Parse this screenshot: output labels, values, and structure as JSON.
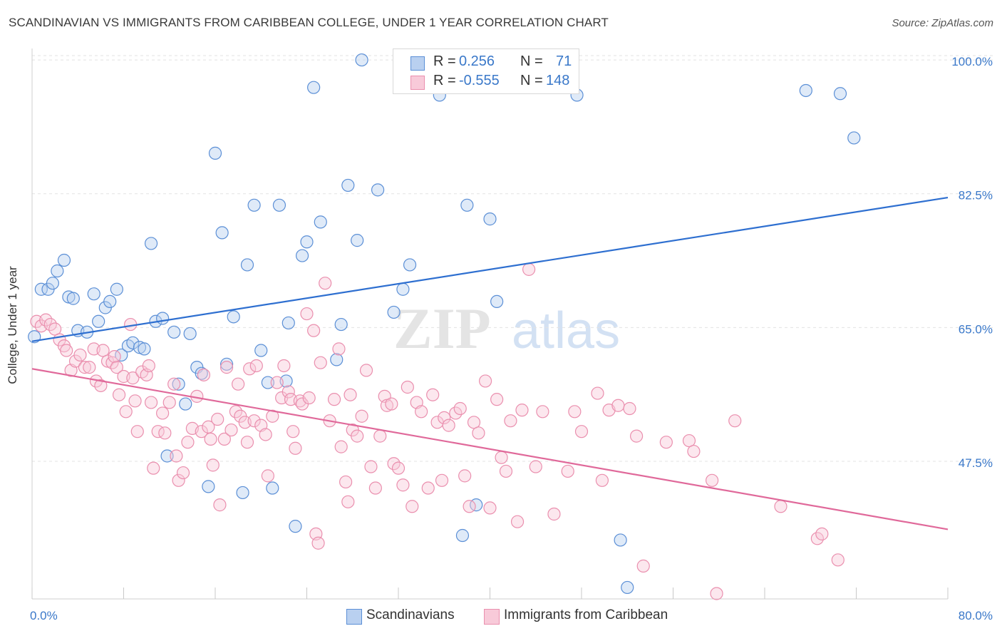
{
  "title": "SCANDINAVIAN VS IMMIGRANTS FROM CARIBBEAN COLLEGE, UNDER 1 YEAR CORRELATION CHART",
  "source": "Source: ZipAtlas.com",
  "watermark": "ZIPatlas",
  "legend": {
    "rows": [
      {
        "r_label": "R =",
        "r_value": "0.256",
        "n_label": "N =",
        "n_value": "71"
      },
      {
        "r_label": "R =",
        "r_value": "-0.555",
        "n_label": "N =",
        "n_value": "148"
      }
    ]
  },
  "chart_data": {
    "type": "scatter",
    "xlabel": "",
    "ylabel": "College, Under 1 year",
    "xlim": [
      0,
      80
    ],
    "ylim": [
      29.5,
      101.5
    ],
    "x_tick_labels": [
      "0.0%",
      "80.0%"
    ],
    "y_ticks": [
      47.5,
      65.0,
      82.5,
      100.0
    ],
    "y_tick_labels": [
      "47.5%",
      "65.0%",
      "82.5%",
      "100.0%"
    ],
    "grid": true,
    "legend_position": "bottom",
    "colors": {
      "blue": "#5b8fd6",
      "pink": "#ea8fae",
      "blue_line": "#2e6fd0",
      "pink_line": "#e0699a",
      "tick_text": "#3a78c9"
    },
    "series": [
      {
        "name": "Scandinavians",
        "color": "#5b8fd6",
        "trend": {
          "x": [
            0,
            80
          ],
          "y": [
            63.2,
            82.0
          ]
        },
        "points": [
          [
            0.2,
            63.8
          ],
          [
            0.8,
            70.0
          ],
          [
            1.4,
            70.0
          ],
          [
            1.8,
            70.8
          ],
          [
            2.2,
            72.4
          ],
          [
            2.8,
            73.8
          ],
          [
            3.2,
            69.0
          ],
          [
            3.6,
            68.8
          ],
          [
            4.0,
            64.6
          ],
          [
            4.8,
            64.4
          ],
          [
            5.4,
            69.4
          ],
          [
            5.8,
            65.8
          ],
          [
            6.4,
            67.6
          ],
          [
            6.8,
            68.4
          ],
          [
            7.4,
            70.0
          ],
          [
            7.8,
            61.4
          ],
          [
            8.4,
            62.6
          ],
          [
            8.8,
            63.0
          ],
          [
            9.4,
            62.4
          ],
          [
            9.8,
            62.2
          ],
          [
            10.4,
            76.0
          ],
          [
            10.8,
            65.8
          ],
          [
            11.4,
            66.2
          ],
          [
            11.8,
            48.2
          ],
          [
            12.4,
            64.4
          ],
          [
            12.8,
            57.6
          ],
          [
            13.4,
            55.0
          ],
          [
            13.8,
            64.2
          ],
          [
            14.4,
            59.8
          ],
          [
            14.8,
            59.0
          ],
          [
            15.4,
            44.2
          ],
          [
            16.0,
            87.8
          ],
          [
            16.6,
            77.4
          ],
          [
            17.0,
            60.2
          ],
          [
            17.6,
            66.4
          ],
          [
            18.4,
            43.4
          ],
          [
            18.8,
            73.2
          ],
          [
            19.4,
            81.0
          ],
          [
            20.0,
            62.0
          ],
          [
            20.6,
            57.8
          ],
          [
            21.0,
            44.0
          ],
          [
            21.6,
            81.0
          ],
          [
            22.2,
            58.0
          ],
          [
            22.4,
            65.6
          ],
          [
            23.0,
            39.0
          ],
          [
            23.6,
            74.4
          ],
          [
            24.0,
            76.2
          ],
          [
            24.6,
            96.4
          ],
          [
            25.2,
            78.8
          ],
          [
            26.6,
            60.8
          ],
          [
            27.0,
            65.4
          ],
          [
            27.6,
            83.6
          ],
          [
            28.4,
            76.4
          ],
          [
            28.8,
            100.0
          ],
          [
            30.2,
            83.0
          ],
          [
            31.6,
            67.0
          ],
          [
            32.4,
            70.0
          ],
          [
            33.0,
            73.2
          ],
          [
            35.6,
            95.4
          ],
          [
            37.6,
            37.8
          ],
          [
            38.0,
            81.0
          ],
          [
            38.8,
            41.8
          ],
          [
            40.0,
            79.2
          ],
          [
            40.6,
            68.4
          ],
          [
            42.8,
            100.0
          ],
          [
            47.6,
            95.4
          ],
          [
            51.4,
            37.2
          ],
          [
            52.0,
            31.0
          ],
          [
            67.6,
            96.0
          ],
          [
            70.6,
            95.6
          ],
          [
            71.8,
            89.8
          ]
        ]
      },
      {
        "name": "Immigrants from Caribbean",
        "color": "#ea8fae",
        "trend": {
          "x": [
            0,
            80
          ],
          "y": [
            59.6,
            38.6
          ]
        },
        "points": [
          [
            0.4,
            65.8
          ],
          [
            0.8,
            65.2
          ],
          [
            1.2,
            66.0
          ],
          [
            1.6,
            65.4
          ],
          [
            2.0,
            64.8
          ],
          [
            2.4,
            63.4
          ],
          [
            2.8,
            62.6
          ],
          [
            3.0,
            62.0
          ],
          [
            3.4,
            59.4
          ],
          [
            3.8,
            60.6
          ],
          [
            4.2,
            61.4
          ],
          [
            4.6,
            59.8
          ],
          [
            5.0,
            59.8
          ],
          [
            5.4,
            62.2
          ],
          [
            5.6,
            58.0
          ],
          [
            6.0,
            57.4
          ],
          [
            6.2,
            62.0
          ],
          [
            6.6,
            60.6
          ],
          [
            7.0,
            60.4
          ],
          [
            7.2,
            61.2
          ],
          [
            7.4,
            59.8
          ],
          [
            7.6,
            56.2
          ],
          [
            8.0,
            58.6
          ],
          [
            8.2,
            54.0
          ],
          [
            8.6,
            65.4
          ],
          [
            8.8,
            58.4
          ],
          [
            9.0,
            55.4
          ],
          [
            9.2,
            51.4
          ],
          [
            9.6,
            59.2
          ],
          [
            10.0,
            58.8
          ],
          [
            10.2,
            60.0
          ],
          [
            10.4,
            55.2
          ],
          [
            10.6,
            46.6
          ],
          [
            11.0,
            51.4
          ],
          [
            11.4,
            53.8
          ],
          [
            11.6,
            51.2
          ],
          [
            12.0,
            55.2
          ],
          [
            12.4,
            57.6
          ],
          [
            12.6,
            48.2
          ],
          [
            12.8,
            45.0
          ],
          [
            13.2,
            46.0
          ],
          [
            13.6,
            50.0
          ],
          [
            14.0,
            51.8
          ],
          [
            14.4,
            56.0
          ],
          [
            14.8,
            51.4
          ],
          [
            15.0,
            58.8
          ],
          [
            15.4,
            52.0
          ],
          [
            15.6,
            50.4
          ],
          [
            15.8,
            47.0
          ],
          [
            16.2,
            53.0
          ],
          [
            16.4,
            41.8
          ],
          [
            16.8,
            50.4
          ],
          [
            17.0,
            59.8
          ],
          [
            17.4,
            51.6
          ],
          [
            17.8,
            54.0
          ],
          [
            18.0,
            57.6
          ],
          [
            18.2,
            53.4
          ],
          [
            18.6,
            52.6
          ],
          [
            18.8,
            50.0
          ],
          [
            19.0,
            59.6
          ],
          [
            19.4,
            52.8
          ],
          [
            19.6,
            60.0
          ],
          [
            20.0,
            52.2
          ],
          [
            20.4,
            51.0
          ],
          [
            20.6,
            45.6
          ],
          [
            21.0,
            53.4
          ],
          [
            21.4,
            57.8
          ],
          [
            21.8,
            55.8
          ],
          [
            22.0,
            60.0
          ],
          [
            22.4,
            56.6
          ],
          [
            22.6,
            55.6
          ],
          [
            22.8,
            51.4
          ],
          [
            23.0,
            49.2
          ],
          [
            23.4,
            55.4
          ],
          [
            23.6,
            55.0
          ],
          [
            24.0,
            66.8
          ],
          [
            24.2,
            55.8
          ],
          [
            24.6,
            64.6
          ],
          [
            24.8,
            38.0
          ],
          [
            25.0,
            36.8
          ],
          [
            25.2,
            60.4
          ],
          [
            25.6,
            70.8
          ],
          [
            26.0,
            52.8
          ],
          [
            26.4,
            55.6
          ],
          [
            26.8,
            62.2
          ],
          [
            27.0,
            49.4
          ],
          [
            27.4,
            44.8
          ],
          [
            27.6,
            42.2
          ],
          [
            27.8,
            56.2
          ],
          [
            28.0,
            51.6
          ],
          [
            28.4,
            50.8
          ],
          [
            28.8,
            53.4
          ],
          [
            29.2,
            59.4
          ],
          [
            29.6,
            46.8
          ],
          [
            30.0,
            44.0
          ],
          [
            30.4,
            50.8
          ],
          [
            30.8,
            56.0
          ],
          [
            31.0,
            54.8
          ],
          [
            31.4,
            55.0
          ],
          [
            31.6,
            47.2
          ],
          [
            32.0,
            46.6
          ],
          [
            32.4,
            44.4
          ],
          [
            32.8,
            57.2
          ],
          [
            33.2,
            41.6
          ],
          [
            33.6,
            55.2
          ],
          [
            34.0,
            54.0
          ],
          [
            34.6,
            44.0
          ],
          [
            35.0,
            56.2
          ],
          [
            35.4,
            52.6
          ],
          [
            35.8,
            45.0
          ],
          [
            36.0,
            53.2
          ],
          [
            36.4,
            52.2
          ],
          [
            37.0,
            53.8
          ],
          [
            37.4,
            54.4
          ],
          [
            37.8,
            45.6
          ],
          [
            38.2,
            41.6
          ],
          [
            38.6,
            52.6
          ],
          [
            39.0,
            51.2
          ],
          [
            39.6,
            58.0
          ],
          [
            40.0,
            41.4
          ],
          [
            40.6,
            55.6
          ],
          [
            41.0,
            48.0
          ],
          [
            41.4,
            46.2
          ],
          [
            41.8,
            52.8
          ],
          [
            42.4,
            39.6
          ],
          [
            42.8,
            54.2
          ],
          [
            43.4,
            72.6
          ],
          [
            44.0,
            46.8
          ],
          [
            44.6,
            54.0
          ],
          [
            45.6,
            40.6
          ],
          [
            46.8,
            46.2
          ],
          [
            47.4,
            54.0
          ],
          [
            48.0,
            51.4
          ],
          [
            49.4,
            56.4
          ],
          [
            49.8,
            45.0
          ],
          [
            50.4,
            54.2
          ],
          [
            51.2,
            54.8
          ],
          [
            52.2,
            54.4
          ],
          [
            52.8,
            50.8
          ],
          [
            53.4,
            33.8
          ],
          [
            55.4,
            50.0
          ],
          [
            57.4,
            50.2
          ],
          [
            57.8,
            48.8
          ],
          [
            59.4,
            45.0
          ],
          [
            59.8,
            30.2
          ],
          [
            61.4,
            52.8
          ],
          [
            65.4,
            41.6
          ],
          [
            68.6,
            37.4
          ],
          [
            69.0,
            38.0
          ],
          [
            70.4,
            34.6
          ]
        ]
      }
    ]
  }
}
